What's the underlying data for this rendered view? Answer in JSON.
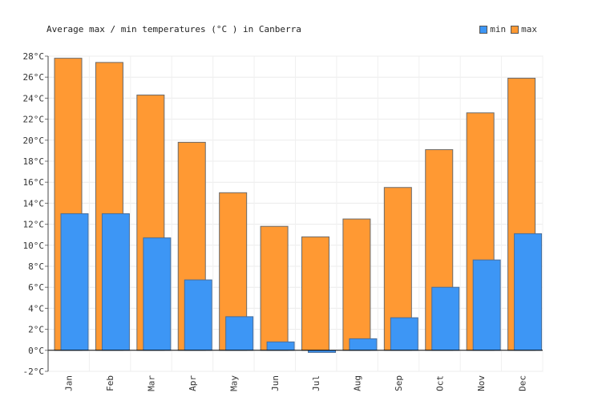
{
  "chart_data": {
    "type": "bar",
    "title": "Average max / min temperatures (°C ) in Canberra",
    "categories": [
      "Jan",
      "Feb",
      "Mar",
      "Apr",
      "May",
      "Jun",
      "Jul",
      "Aug",
      "Sep",
      "Oct",
      "Nov",
      "Dec"
    ],
    "series": [
      {
        "name": "min",
        "color": "#3d96f5",
        "values": [
          13.0,
          13.0,
          10.7,
          6.7,
          3.2,
          0.8,
          -0.2,
          1.1,
          3.1,
          6.0,
          8.6,
          11.1
        ]
      },
      {
        "name": "max",
        "color": "#ff9933",
        "values": [
          27.8,
          27.4,
          24.3,
          19.8,
          15.0,
          11.8,
          10.8,
          12.5,
          15.5,
          19.1,
          22.6,
          25.9
        ]
      }
    ],
    "ylim": [
      -2,
      28
    ],
    "yticks": [
      "-2°C",
      "0°C",
      "2°C",
      "4°C",
      "6°C",
      "8°C",
      "10°C",
      "12°C",
      "14°C",
      "16°C",
      "18°C",
      "20°C",
      "22°C",
      "24°C",
      "26°C",
      "28°C"
    ],
    "grid": true,
    "legend": "top-right"
  }
}
